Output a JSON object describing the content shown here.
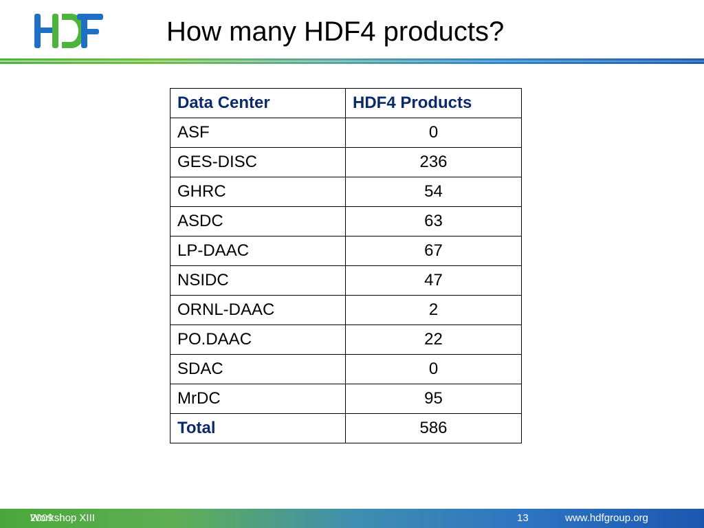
{
  "slide": {
    "title": "How many HDF4 products?"
  },
  "logo": {
    "text": "HDF",
    "colors": {
      "blue": "#1f6fc4",
      "green": "#4cb43c"
    }
  },
  "table": {
    "headers": [
      "Data Center",
      "HDF4 Products"
    ],
    "rows": [
      [
        "ASF",
        "0"
      ],
      [
        "GES-DISC",
        "236"
      ],
      [
        "GHRC",
        "54"
      ],
      [
        "ASDC",
        "63"
      ],
      [
        "LP-DAAC",
        "67"
      ],
      [
        "NSIDC",
        "47"
      ],
      [
        "ORNL-DAAC",
        "2"
      ],
      [
        "PO.DAAC",
        "22"
      ],
      [
        "SDAC",
        "0"
      ],
      [
        "MrDC",
        "95"
      ]
    ],
    "total_label": "Total",
    "total_value": "586",
    "header_color": "#0b2a6a"
  },
  "footer": {
    "left_a": "Workshop XIII",
    "left_b": "2009",
    "page_number": "13",
    "url": "www.hdfgroup.org"
  }
}
